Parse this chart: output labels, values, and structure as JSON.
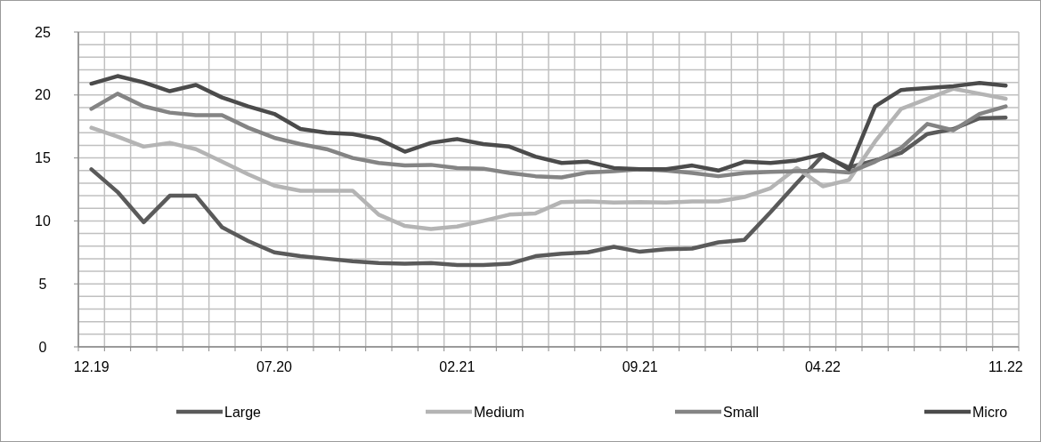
{
  "chart_data": {
    "type": "line",
    "categories": [
      "12.19",
      null,
      null,
      null,
      null,
      null,
      null,
      "07.20",
      null,
      null,
      null,
      null,
      null,
      null,
      "02.21",
      null,
      null,
      null,
      null,
      null,
      null,
      "09.21",
      null,
      null,
      null,
      null,
      null,
      null,
      "04.22",
      null,
      null,
      null,
      null,
      null,
      null,
      "11.22"
    ],
    "series": [
      {
        "name": "Large",
        "color": "#5a5a5a",
        "values": [
          14.1,
          12.3,
          9.9,
          12.0,
          12.0,
          9.5,
          8.4,
          7.5,
          7.2,
          7.0,
          6.8,
          6.65,
          6.6,
          6.65,
          6.5,
          6.5,
          6.6,
          7.2,
          7.4,
          7.5,
          7.95,
          7.55,
          7.75,
          7.8,
          8.3,
          8.5,
          10.7,
          13.0,
          15.2,
          14.25,
          14.8,
          15.4,
          16.9,
          17.3,
          18.15,
          18.2
        ]
      },
      {
        "name": "Medium",
        "color": "#b4b4b4",
        "values": [
          17.4,
          16.7,
          15.9,
          16.2,
          15.7,
          14.7,
          13.7,
          12.8,
          12.4,
          12.4,
          12.4,
          10.5,
          9.6,
          9.35,
          9.55,
          10.0,
          10.5,
          10.6,
          11.5,
          11.55,
          11.45,
          11.5,
          11.45,
          11.55,
          11.55,
          11.9,
          12.6,
          14.2,
          12.75,
          13.25,
          16.3,
          18.9,
          19.7,
          20.5,
          20.1,
          19.7
        ]
      },
      {
        "name": "Small",
        "color": "#848484",
        "values": [
          18.9,
          20.1,
          19.1,
          18.6,
          18.4,
          18.4,
          17.4,
          16.6,
          16.1,
          15.7,
          15.0,
          14.6,
          14.4,
          14.45,
          14.2,
          14.15,
          13.8,
          13.55,
          13.45,
          13.85,
          13.95,
          14.1,
          14.0,
          13.8,
          13.55,
          13.8,
          13.9,
          13.95,
          14.0,
          13.85,
          14.7,
          15.8,
          17.7,
          17.2,
          18.5,
          19.1
        ]
      },
      {
        "name": "Micro",
        "color": "#4b4b4b",
        "values": [
          20.9,
          21.5,
          21.0,
          20.3,
          20.8,
          19.8,
          19.1,
          18.5,
          17.3,
          17.0,
          16.9,
          16.5,
          15.5,
          16.2,
          16.5,
          16.1,
          15.9,
          15.1,
          14.6,
          14.7,
          14.2,
          14.1,
          14.1,
          14.4,
          14.0,
          14.7,
          14.6,
          14.8,
          15.3,
          14.1,
          19.1,
          20.4,
          20.55,
          20.7,
          20.95,
          20.75
        ]
      }
    ],
    "ylim": [
      0,
      25
    ],
    "yticks": [
      0,
      {
        "value": 1,
        "label": null
      },
      {
        "value": 2,
        "label": null
      },
      {
        "value": 3,
        "label": null
      },
      {
        "value": 4,
        "label": null
      },
      5,
      {
        "value": 6,
        "label": null
      },
      {
        "value": 7,
        "label": null
      },
      {
        "value": 8,
        "label": null
      },
      {
        "value": 9,
        "label": null
      },
      10,
      {
        "value": 11,
        "label": null
      },
      {
        "value": 12,
        "label": null
      },
      {
        "value": 13,
        "label": null
      },
      {
        "value": 14,
        "label": null
      },
      15,
      {
        "value": 16,
        "label": null
      },
      {
        "value": 17,
        "label": null
      },
      {
        "value": 18,
        "label": null
      },
      {
        "value": 19,
        "label": null
      },
      20,
      {
        "value": 21,
        "label": null
      },
      {
        "value": 22,
        "label": null
      },
      {
        "value": 23,
        "label": null
      },
      {
        "value": 24,
        "label": null
      },
      25
    ],
    "grid": true,
    "legend": "bottom",
    "marker": "none",
    "line_style": "solid"
  }
}
